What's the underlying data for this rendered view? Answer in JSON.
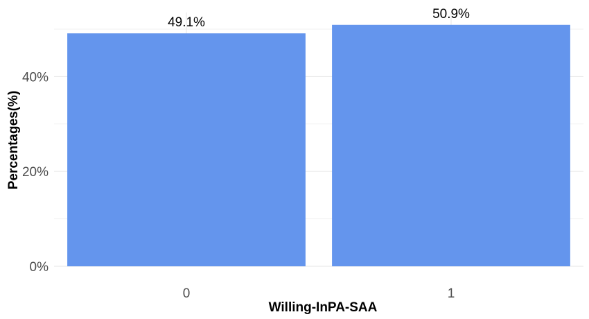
{
  "chart_data": {
    "type": "bar",
    "categories": [
      "0",
      "1"
    ],
    "values": [
      49.1,
      50.9
    ],
    "data_labels": [
      "49.1%",
      "50.9%"
    ],
    "title": "",
    "xlabel": "Willing-InPA-SAA",
    "ylabel": "Percentages(%)",
    "ylim": [
      0,
      53.5
    ],
    "y_ticks": [
      0,
      20,
      40
    ],
    "y_tick_labels": [
      "0%",
      "20%",
      "40%"
    ],
    "grid": true,
    "legend": "none",
    "bar_color": "#6495ED",
    "background": "#FFFFFF"
  }
}
